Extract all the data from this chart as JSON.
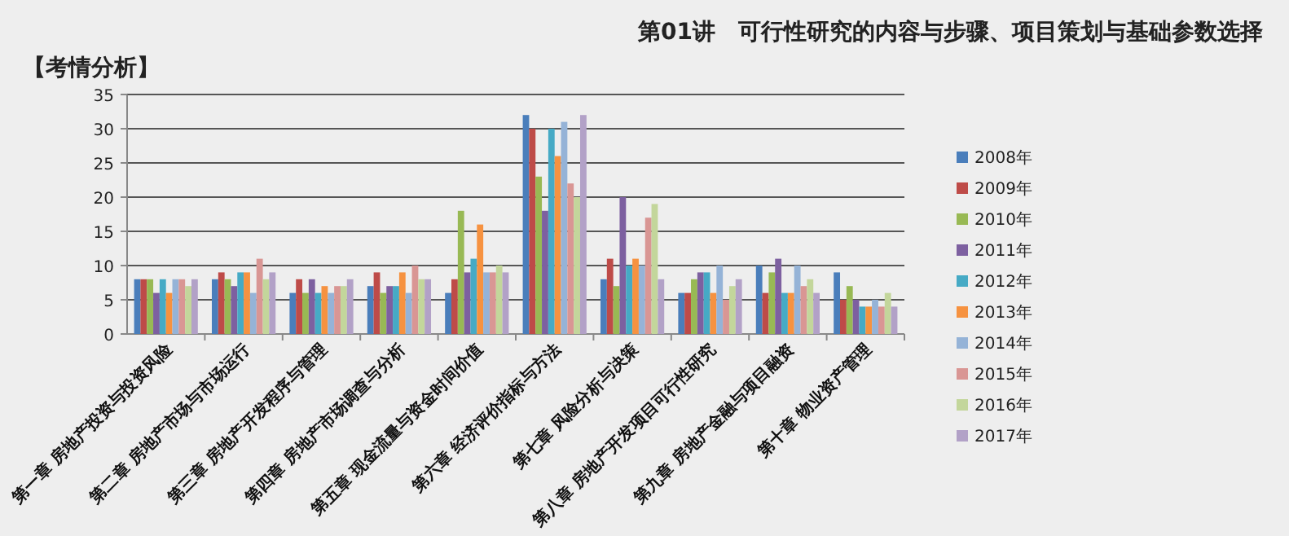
{
  "chart_data": {
    "type": "bar",
    "title": "第01讲　可行性研究的内容与步骤、项目策划与基础参数选择",
    "annotations": [
      "【考情分析】"
    ],
    "categories": [
      "第一章 房地产投资与投资风险",
      "第二章 房地产市场与市场运行",
      "第三章 房地产开发程序与管理",
      "第四章 房地产市场调查与分析",
      "第五章 现金流量与资金时间价值",
      "第六章 经济评价指标与方法",
      "第七章 风险分析与决策",
      "第八章 房地产开发项目可行性研究",
      "第九章 房地产金融与项目融资",
      "第十章 物业资产管理"
    ],
    "series": [
      {
        "name": "2008年",
        "color": "#4a7ebb",
        "values": [
          8,
          8,
          6,
          7,
          6,
          32,
          8,
          6,
          10,
          9
        ]
      },
      {
        "name": "2009年",
        "color": "#be4b48",
        "values": [
          8,
          9,
          8,
          9,
          8,
          30,
          11,
          6,
          6,
          5
        ]
      },
      {
        "name": "2010年",
        "color": "#98b954",
        "values": [
          8,
          8,
          6,
          6,
          18,
          23,
          7,
          8,
          9,
          7
        ]
      },
      {
        "name": "2011年",
        "color": "#7d60a0",
        "values": [
          6,
          7,
          8,
          7,
          9,
          18,
          20,
          9,
          11,
          5
        ]
      },
      {
        "name": "2012年",
        "color": "#46aac5",
        "values": [
          8,
          9,
          6,
          7,
          11,
          30,
          10,
          9,
          6,
          4
        ]
      },
      {
        "name": "2013年",
        "color": "#f69240",
        "values": [
          6,
          9,
          7,
          9,
          16,
          26,
          11,
          6,
          6,
          4
        ]
      },
      {
        "name": "2014年",
        "color": "#95b3d7",
        "values": [
          8,
          6,
          6,
          6,
          9,
          31,
          10,
          10,
          10,
          5
        ]
      },
      {
        "name": "2015年",
        "color": "#d99694",
        "values": [
          8,
          11,
          7,
          10,
          9,
          22,
          17,
          5,
          7,
          4
        ]
      },
      {
        "name": "2016年",
        "color": "#c3d69b",
        "values": [
          7,
          8,
          7,
          8,
          10,
          20,
          19,
          7,
          8,
          6
        ]
      },
      {
        "name": "2017年",
        "color": "#b2a1c7",
        "values": [
          8,
          9,
          8,
          8,
          9,
          32,
          8,
          8,
          6,
          4
        ]
      }
    ],
    "ylim": [
      0,
      35
    ],
    "yticks": [
      0,
      5,
      10,
      15,
      20,
      25,
      30,
      35
    ],
    "grid": "y",
    "legend": "right"
  }
}
